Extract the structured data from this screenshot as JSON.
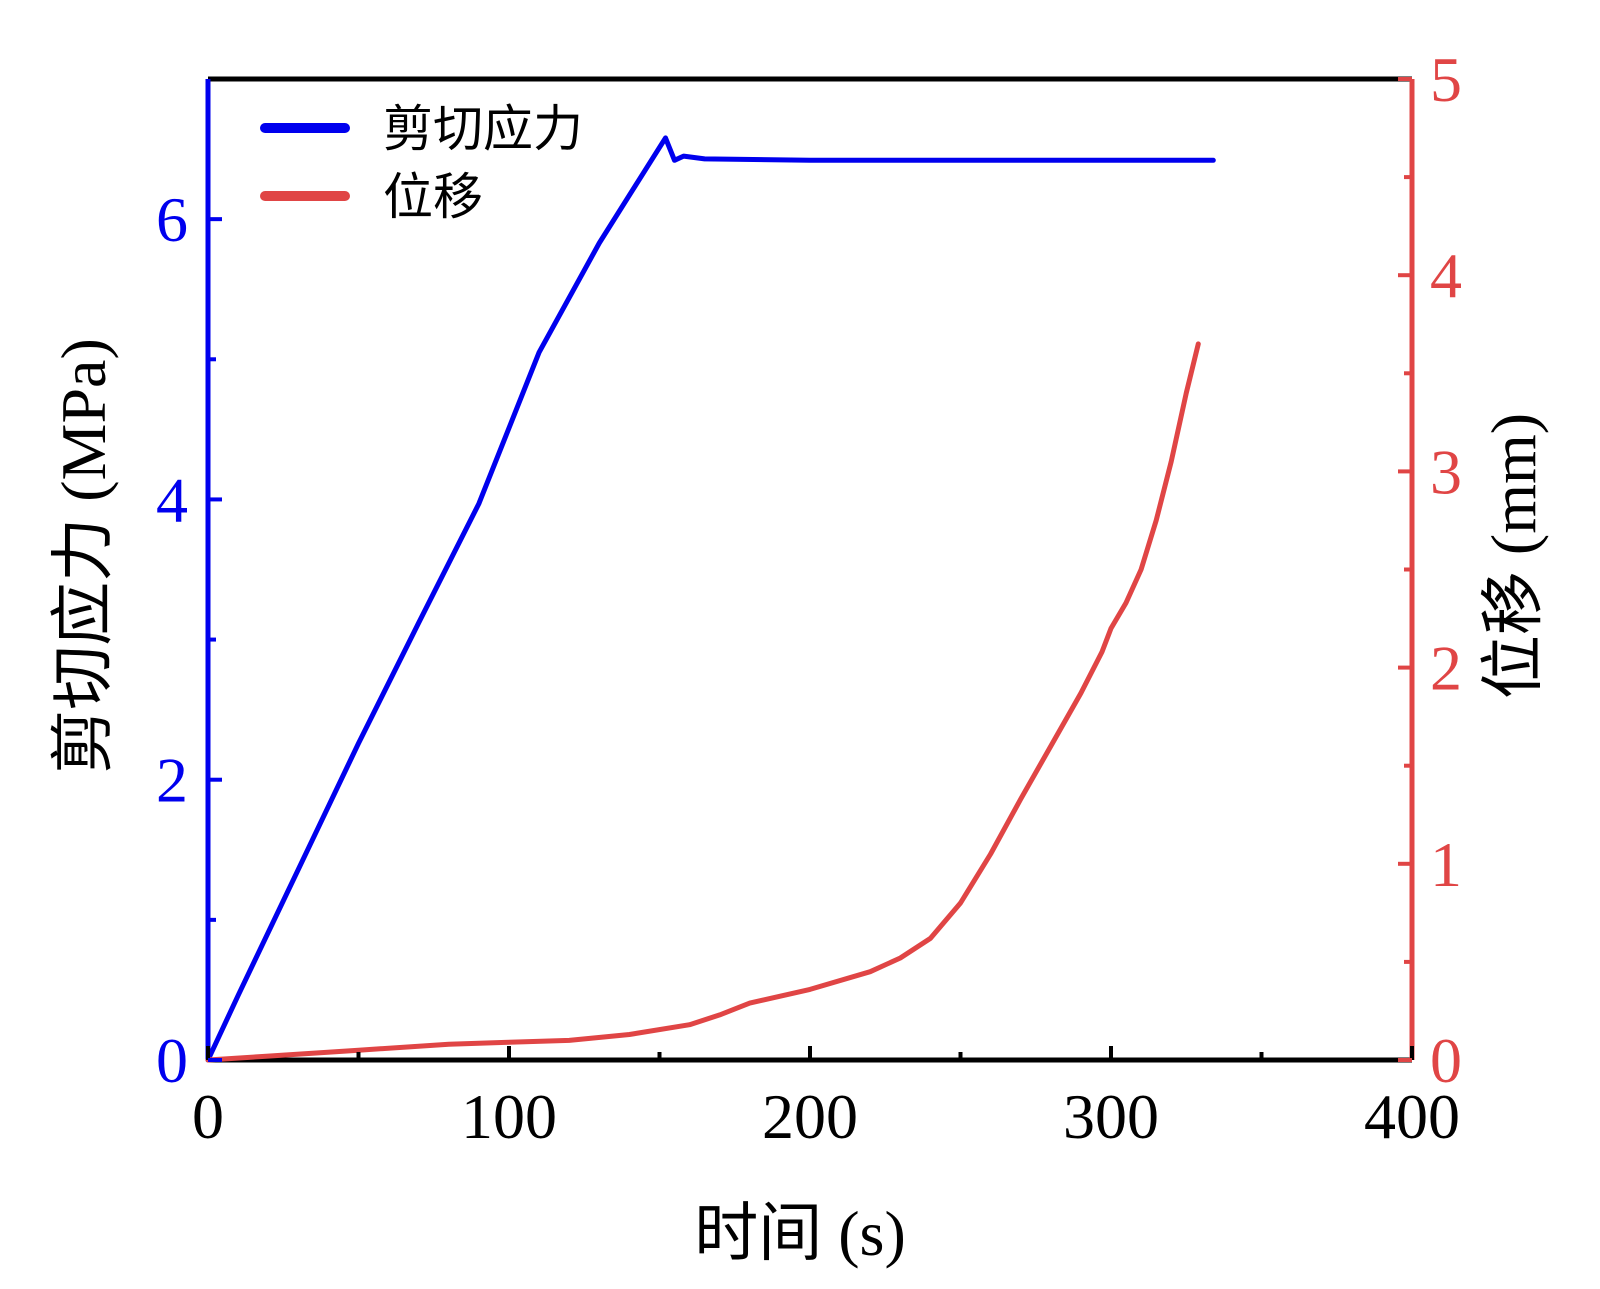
{
  "chart_data": {
    "type": "line",
    "xlabel": "时间 (s)",
    "ylabel_left": "剪切应力 (MPa)",
    "ylabel_right": "位移 (mm)",
    "xlim": [
      0,
      400
    ],
    "ylim_left": [
      0,
      7
    ],
    "ylim_right": [
      0,
      5
    ],
    "x_ticks": [
      0,
      100,
      200,
      300,
      400
    ],
    "y_left_ticks": [
      0,
      2,
      4,
      6
    ],
    "y_right_ticks": [
      0,
      1,
      2,
      3,
      4,
      5
    ],
    "grid": false,
    "legend_position": "top-left",
    "series": [
      {
        "name": "剪切应力",
        "axis": "left",
        "color": "#0000ee",
        "points": [
          [
            0,
            0
          ],
          [
            10,
            0.46
          ],
          [
            30,
            1.36
          ],
          [
            50,
            2.26
          ],
          [
            70,
            3.12
          ],
          [
            90,
            3.97
          ],
          [
            110,
            5.05
          ],
          [
            130,
            5.83
          ],
          [
            152,
            6.58
          ],
          [
            155,
            6.42
          ],
          [
            158,
            6.45
          ],
          [
            165,
            6.43
          ],
          [
            200,
            6.42
          ],
          [
            250,
            6.42
          ],
          [
            300,
            6.42
          ],
          [
            334,
            6.42
          ]
        ]
      },
      {
        "name": "位移",
        "axis": "right",
        "color": "#e04545",
        "points": [
          [
            0,
            0
          ],
          [
            20,
            0.02
          ],
          [
            50,
            0.05
          ],
          [
            80,
            0.08
          ],
          [
            100,
            0.09
          ],
          [
            120,
            0.1
          ],
          [
            140,
            0.13
          ],
          [
            160,
            0.18
          ],
          [
            170,
            0.23
          ],
          [
            180,
            0.29
          ],
          [
            200,
            0.36
          ],
          [
            220,
            0.45
          ],
          [
            230,
            0.52
          ],
          [
            240,
            0.62
          ],
          [
            250,
            0.8
          ],
          [
            260,
            1.05
          ],
          [
            270,
            1.33
          ],
          [
            280,
            1.6
          ],
          [
            290,
            1.87
          ],
          [
            297,
            2.08
          ],
          [
            300,
            2.2
          ],
          [
            305,
            2.33
          ],
          [
            310,
            2.5
          ],
          [
            315,
            2.75
          ],
          [
            320,
            3.05
          ],
          [
            325,
            3.4
          ],
          [
            329,
            3.65
          ]
        ]
      }
    ]
  }
}
